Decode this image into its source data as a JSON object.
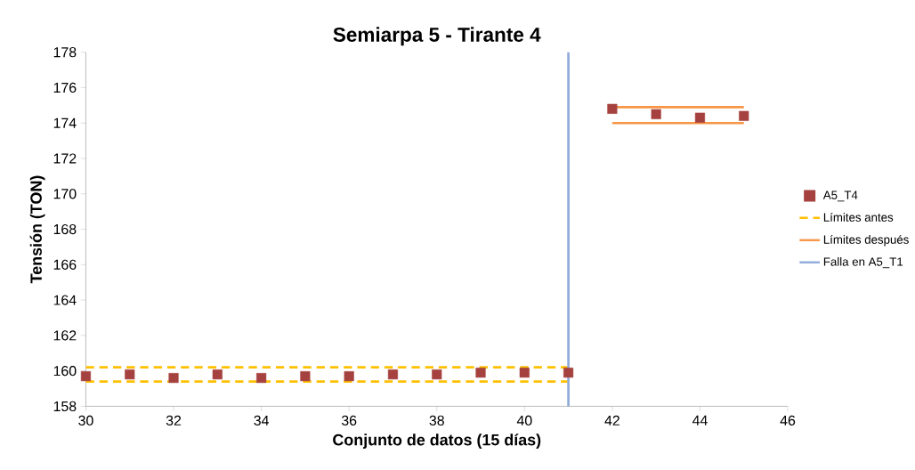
{
  "chart_data": {
    "type": "scatter",
    "title": "Semiarpa 5 - Tirante 4",
    "xlabel": "Conjunto de datos (15 días)",
    "ylabel": "Tensión (TON)",
    "xlim": [
      30,
      46
    ],
    "xticks": [
      30,
      32,
      34,
      36,
      38,
      40,
      42,
      44,
      46
    ],
    "ylim": [
      158,
      178
    ],
    "yticks": [
      158,
      160,
      162,
      164,
      166,
      168,
      170,
      172,
      174,
      176,
      178
    ],
    "grid": false,
    "legend": "right",
    "series": [
      {
        "name": "A5_T4",
        "type": "scatter",
        "marker": "square",
        "color": "#a5423f",
        "x": [
          30,
          31,
          32,
          33,
          34,
          35,
          36,
          37,
          38,
          39,
          40,
          41,
          42,
          43,
          44,
          45
        ],
        "values": [
          159.7,
          159.8,
          159.6,
          159.8,
          159.6,
          159.7,
          159.7,
          159.8,
          159.8,
          159.9,
          159.9,
          159.9,
          174.8,
          174.5,
          174.3,
          174.4
        ]
      },
      {
        "name": "Límites antes",
        "type": "line",
        "line_style": "dashed",
        "color": "#ffc000",
        "x": [
          30,
          41
        ],
        "values": [
          160.2,
          160.2
        ]
      },
      {
        "type": "line",
        "line_style": "dashed",
        "color": "#ffc000",
        "x": [
          30,
          41
        ],
        "values": [
          159.4,
          159.4
        ]
      },
      {
        "name": "Límites después",
        "type": "line",
        "line_style": "solid",
        "color": "#f79646",
        "x": [
          42,
          45
        ],
        "values": [
          174.9,
          174.9
        ]
      },
      {
        "type": "line",
        "line_style": "solid",
        "color": "#f79646",
        "x": [
          42,
          45
        ],
        "values": [
          174.0,
          174.0
        ]
      },
      {
        "name": "Falla en A5_T1",
        "type": "line",
        "line_style": "solid",
        "color": "#8faadc",
        "x": [
          41,
          41
        ],
        "values": [
          158,
          178
        ]
      }
    ]
  }
}
